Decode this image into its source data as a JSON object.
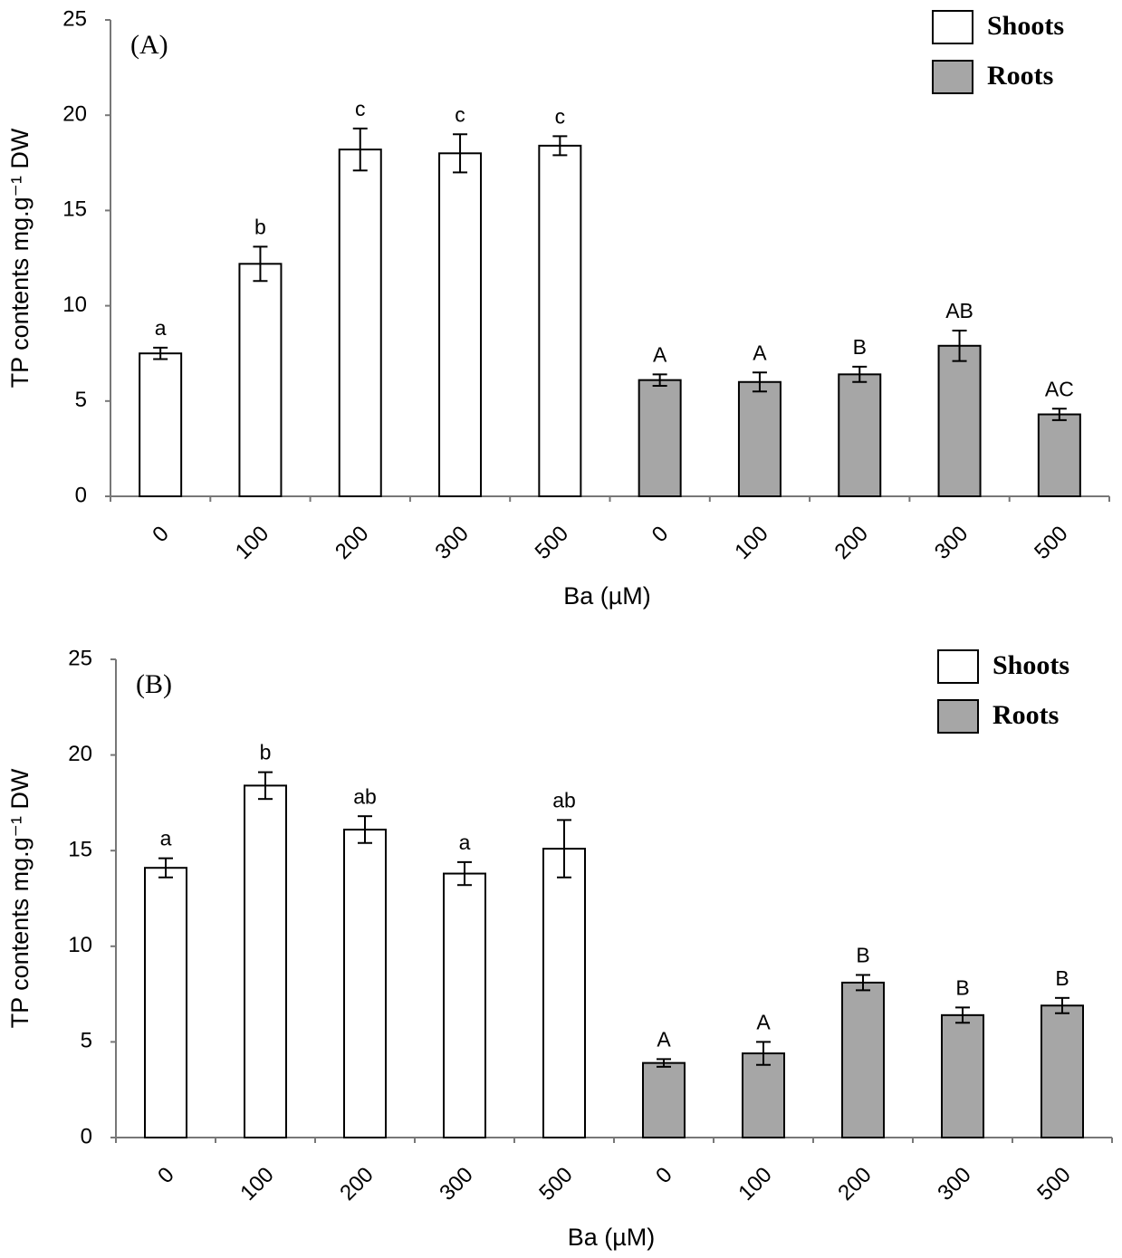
{
  "chart_data": [
    {
      "type": "bar",
      "panel": "(A)",
      "ylabel": "TP contents mg.g⁻¹ DW",
      "xlabel": "Ba (µM)",
      "categories": [
        "0",
        "100",
        "200",
        "300",
        "500",
        "0",
        "100",
        "200",
        "300",
        "500"
      ],
      "series": [
        {
          "name": "Shoots",
          "color": "#ffffff",
          "values": [
            7.5,
            12.2,
            18.2,
            18.0,
            18.4,
            null,
            null,
            null,
            null,
            null
          ],
          "errors": [
            0.3,
            0.9,
            1.1,
            1.0,
            0.5,
            null,
            null,
            null,
            null,
            null
          ],
          "labels": [
            "a",
            "b",
            "c",
            "c",
            "c",
            null,
            null,
            null,
            null,
            null
          ]
        },
        {
          "name": "Roots",
          "color": "#a6a6a6",
          "values": [
            null,
            null,
            null,
            null,
            null,
            6.1,
            6.0,
            6.4,
            7.9,
            4.3
          ],
          "errors": [
            null,
            null,
            null,
            null,
            null,
            0.3,
            0.5,
            0.4,
            0.8,
            0.3
          ],
          "labels": [
            null,
            null,
            null,
            null,
            null,
            "A",
            "A",
            "B",
            "AB",
            "AC"
          ]
        }
      ],
      "ylim": [
        0,
        25
      ],
      "yticks": [
        0,
        5,
        10,
        15,
        20,
        25
      ],
      "legend": "upper right"
    },
    {
      "type": "bar",
      "panel": "(B)",
      "ylabel": "TP contents mg.g⁻¹ DW",
      "xlabel": "Ba (µM)",
      "categories": [
        "0",
        "100",
        "200",
        "300",
        "500",
        "0",
        "100",
        "200",
        "300",
        "500"
      ],
      "series": [
        {
          "name": "Shoots",
          "color": "#ffffff",
          "values": [
            14.1,
            18.4,
            16.1,
            13.8,
            15.1,
            null,
            null,
            null,
            null,
            null
          ],
          "errors": [
            0.5,
            0.7,
            0.7,
            0.6,
            1.5,
            null,
            null,
            null,
            null,
            null
          ],
          "labels": [
            "a",
            "b",
            "ab",
            "a",
            "ab",
            null,
            null,
            null,
            null,
            null
          ]
        },
        {
          "name": "Roots",
          "color": "#a6a6a6",
          "values": [
            null,
            null,
            null,
            null,
            null,
            3.9,
            4.4,
            8.1,
            6.4,
            6.9
          ],
          "errors": [
            null,
            null,
            null,
            null,
            null,
            0.2,
            0.6,
            0.4,
            0.4,
            0.4
          ],
          "labels": [
            null,
            null,
            null,
            null,
            null,
            "A",
            "A",
            "B",
            "B",
            "B"
          ]
        }
      ],
      "ylim": [
        0,
        25
      ],
      "yticks": [
        0,
        5,
        10,
        15,
        20,
        25
      ],
      "legend": "upper right"
    }
  ]
}
